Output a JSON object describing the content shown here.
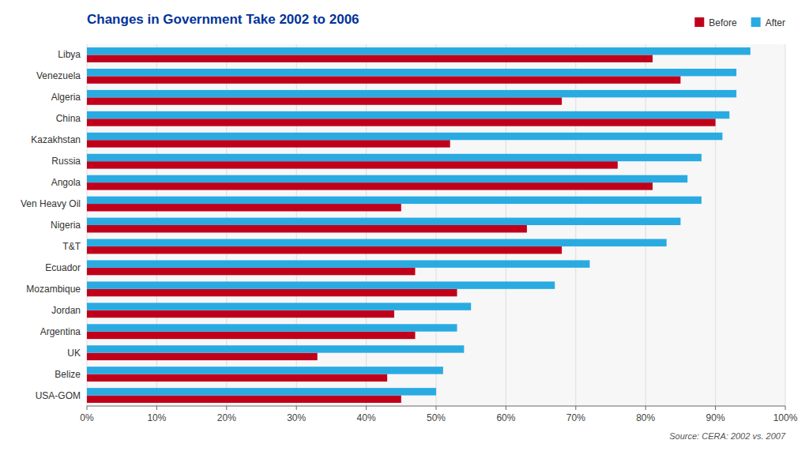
{
  "chart_data": {
    "type": "bar",
    "orientation": "horizontal",
    "title": "Changes in Government Take 2002 to 2006",
    "categories": [
      "USA-GOM",
      "Belize",
      "UK",
      "Argentina",
      "Jordan",
      "Mozambique",
      "Ecuador",
      "T&T",
      "Nigeria",
      "Ven Heavy Oil",
      "Angola",
      "Russia",
      "Kazakhstan",
      "China",
      "Algeria",
      "Venezuela",
      "Libya"
    ],
    "series": [
      {
        "name": "Before",
        "color": "#c0001a",
        "values": [
          45,
          43,
          33,
          47,
          44,
          53,
          47,
          68,
          63,
          45,
          81,
          76,
          52,
          90,
          68,
          85,
          81
        ]
      },
      {
        "name": "After",
        "color": "#29abe2",
        "values": [
          50,
          51,
          54,
          53,
          55,
          67,
          72,
          83,
          85,
          88,
          86,
          88,
          91,
          92,
          93,
          93,
          95
        ]
      }
    ],
    "xlim": [
      0,
      100
    ],
    "xticks": [
      {
        "value": 0,
        "label": "0%"
      },
      {
        "value": 10,
        "label": "10%"
      },
      {
        "value": 20,
        "label": "20%"
      },
      {
        "value": 30,
        "label": "30%"
      },
      {
        "value": 40,
        "label": "40%"
      },
      {
        "value": 50,
        "label": "50%"
      },
      {
        "value": 60,
        "label": "60%"
      },
      {
        "value": 70,
        "label": "70%"
      },
      {
        "value": 80,
        "label": "80%"
      },
      {
        "value": 90,
        "label": "90%"
      },
      {
        "value": 100,
        "label": "100%"
      }
    ],
    "grid": true,
    "legend": "upper right",
    "annotations": [
      "Source: CERA: 2002 vs. 2007"
    ]
  }
}
